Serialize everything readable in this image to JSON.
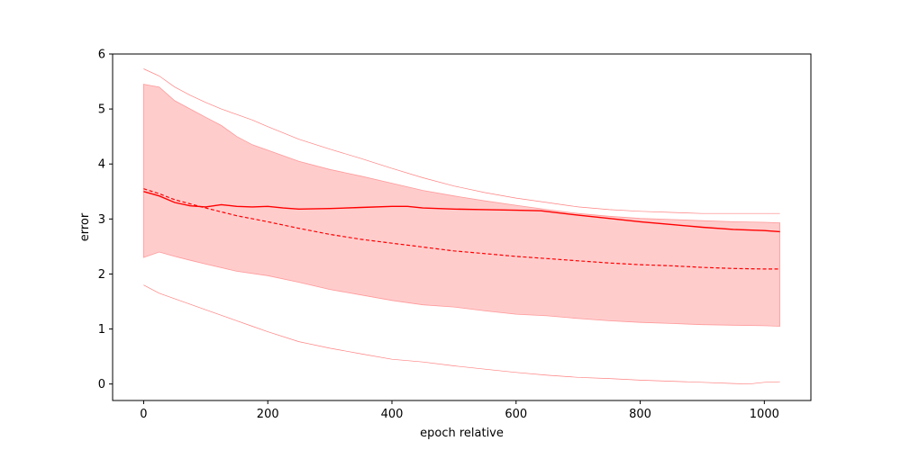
{
  "chart_data": {
    "type": "line",
    "title": "",
    "xlabel": "epoch relative",
    "ylabel": "error",
    "xlim": [
      -50,
      1075
    ],
    "ylim": [
      -0.3,
      6.0
    ],
    "grid": false,
    "legend": "none",
    "x_ticks": [
      0,
      200,
      400,
      600,
      800,
      1000
    ],
    "y_ticks": [
      0,
      1,
      2,
      3,
      4,
      5,
      6
    ],
    "colors": {
      "line": "#ff0000",
      "band_fill": "#ffcccc",
      "band_edge": "#ff9999",
      "outer": "#ff8080"
    },
    "series": [
      {
        "role": "mean",
        "style": "solid",
        "x": [
          0,
          25,
          50,
          75,
          100,
          125,
          150,
          175,
          200,
          225,
          250,
          300,
          350,
          400,
          425,
          450,
          500,
          550,
          600,
          640,
          700,
          750,
          800,
          850,
          900,
          950,
          1000,
          1025
        ],
        "y": [
          3.5,
          3.42,
          3.3,
          3.24,
          3.22,
          3.26,
          3.23,
          3.22,
          3.23,
          3.2,
          3.18,
          3.19,
          3.21,
          3.23,
          3.23,
          3.2,
          3.18,
          3.17,
          3.16,
          3.15,
          3.07,
          3.01,
          2.95,
          2.9,
          2.85,
          2.81,
          2.79,
          2.77
        ]
      },
      {
        "role": "median",
        "style": "dashed",
        "x": [
          0,
          25,
          50,
          100,
          150,
          200,
          250,
          300,
          350,
          400,
          450,
          500,
          550,
          600,
          650,
          700,
          750,
          800,
          850,
          900,
          950,
          1000,
          1025
        ],
        "y": [
          3.55,
          3.46,
          3.35,
          3.2,
          3.06,
          2.95,
          2.83,
          2.72,
          2.63,
          2.56,
          2.49,
          2.42,
          2.37,
          2.32,
          2.28,
          2.24,
          2.2,
          2.17,
          2.15,
          2.12,
          2.1,
          2.09,
          2.09
        ]
      },
      {
        "role": "band-upper",
        "style": "fill",
        "x": [
          0,
          25,
          50,
          75,
          100,
          125,
          150,
          175,
          200,
          250,
          300,
          350,
          400,
          450,
          500,
          550,
          600,
          650,
          700,
          750,
          800,
          850,
          900,
          950,
          1000,
          1025
        ],
        "y": [
          5.45,
          5.4,
          5.15,
          5.0,
          4.85,
          4.7,
          4.5,
          4.35,
          4.25,
          4.05,
          3.9,
          3.78,
          3.65,
          3.52,
          3.42,
          3.33,
          3.25,
          3.17,
          3.1,
          3.05,
          3.01,
          2.99,
          2.97,
          2.95,
          2.94,
          2.93
        ]
      },
      {
        "role": "band-lower",
        "style": "fill",
        "x": [
          0,
          25,
          50,
          75,
          100,
          150,
          200,
          250,
          300,
          350,
          400,
          450,
          500,
          550,
          600,
          650,
          700,
          750,
          800,
          850,
          900,
          950,
          1000,
          1025
        ],
        "y": [
          2.3,
          2.4,
          2.32,
          2.25,
          2.18,
          2.05,
          1.97,
          1.85,
          1.72,
          1.62,
          1.52,
          1.44,
          1.4,
          1.33,
          1.27,
          1.24,
          1.19,
          1.15,
          1.12,
          1.1,
          1.08,
          1.07,
          1.06,
          1.05
        ]
      },
      {
        "role": "outer-upper",
        "style": "thin",
        "x": [
          0,
          25,
          50,
          75,
          100,
          125,
          150,
          175,
          200,
          250,
          300,
          350,
          400,
          450,
          500,
          550,
          600,
          650,
          700,
          750,
          800,
          850,
          900,
          950,
          1000,
          1025
        ],
        "y": [
          5.73,
          5.6,
          5.4,
          5.25,
          5.12,
          5.0,
          4.9,
          4.8,
          4.68,
          4.45,
          4.27,
          4.1,
          3.92,
          3.75,
          3.6,
          3.48,
          3.38,
          3.3,
          3.22,
          3.17,
          3.14,
          3.12,
          3.1,
          3.1,
          3.1,
          3.1
        ]
      },
      {
        "role": "outer-lower",
        "style": "thin",
        "x": [
          0,
          25,
          50,
          75,
          100,
          125,
          150,
          175,
          200,
          250,
          300,
          350,
          400,
          450,
          500,
          550,
          600,
          650,
          700,
          750,
          800,
          850,
          900,
          950,
          975,
          1000,
          1025
        ],
        "y": [
          1.8,
          1.65,
          1.55,
          1.45,
          1.35,
          1.25,
          1.15,
          1.05,
          0.95,
          0.77,
          0.65,
          0.55,
          0.45,
          0.4,
          0.33,
          0.27,
          0.21,
          0.16,
          0.12,
          0.1,
          0.07,
          0.05,
          0.03,
          0.01,
          0.0,
          0.03,
          0.04
        ]
      }
    ]
  }
}
